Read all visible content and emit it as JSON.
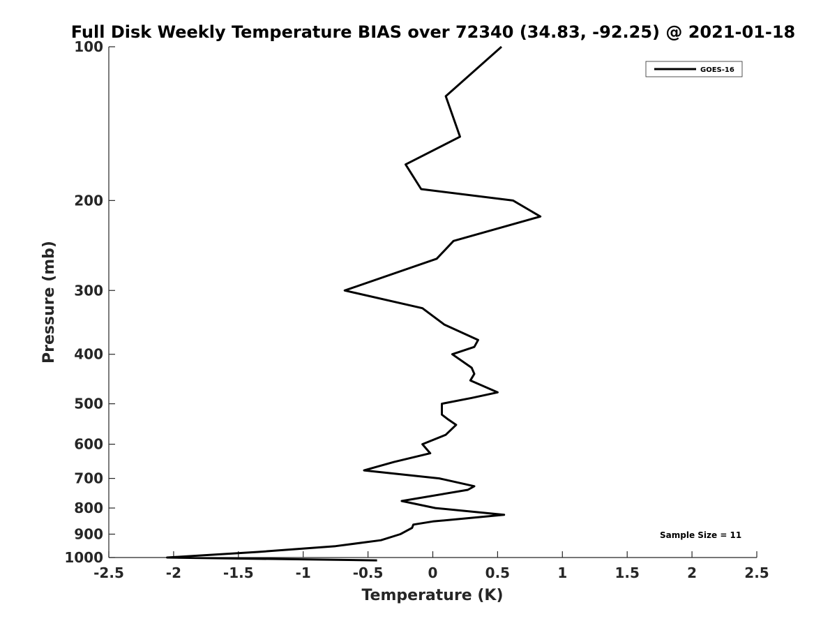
{
  "chart_data": {
    "type": "line",
    "title": "Full Disk Weekly Temperature BIAS over 72340 (34.83, -92.25) @ 2021-01-18",
    "xlabel": "Temperature (K)",
    "ylabel": "Pressure (mb)",
    "xlim": [
      -2.5,
      2.5
    ],
    "ylim": [
      100,
      1000
    ],
    "y_scale": "log",
    "y_reversed": true,
    "x_ticks": [
      -2.5,
      -2,
      -1.5,
      -1,
      -0.5,
      0,
      0.5,
      1,
      1.5,
      2,
      2.5
    ],
    "x_tick_labels": [
      "-2.5",
      "-2",
      "-1.5",
      "-1",
      "-0.5",
      "0",
      "0.5",
      "1",
      "1.5",
      "2",
      "2.5"
    ],
    "y_ticks": [
      100,
      200,
      300,
      400,
      500,
      600,
      700,
      800,
      900,
      1000
    ],
    "y_tick_labels": [
      "100",
      "200",
      "300",
      "400",
      "500",
      "600",
      "700",
      "800",
      "900",
      "1000"
    ],
    "grid": false,
    "legend_position": "top-right",
    "annotation": "Sample Size = 11",
    "series": [
      {
        "name": "GOES-16",
        "color": "#000000",
        "points": [
          {
            "x": 0.53,
            "y": 100
          },
          {
            "x": 0.1,
            "y": 125
          },
          {
            "x": 0.21,
            "y": 150
          },
          {
            "x": -0.21,
            "y": 170
          },
          {
            "x": -0.09,
            "y": 190
          },
          {
            "x": 0.62,
            "y": 200
          },
          {
            "x": 0.83,
            "y": 215
          },
          {
            "x": 0.16,
            "y": 240
          },
          {
            "x": 0.03,
            "y": 260
          },
          {
            "x": -0.68,
            "y": 300
          },
          {
            "x": -0.08,
            "y": 325
          },
          {
            "x": 0.09,
            "y": 350
          },
          {
            "x": 0.35,
            "y": 375
          },
          {
            "x": 0.32,
            "y": 387
          },
          {
            "x": 0.15,
            "y": 400
          },
          {
            "x": 0.3,
            "y": 425
          },
          {
            "x": 0.32,
            "y": 437
          },
          {
            "x": 0.29,
            "y": 450
          },
          {
            "x": 0.5,
            "y": 475
          },
          {
            "x": 0.3,
            "y": 487
          },
          {
            "x": 0.07,
            "y": 500
          },
          {
            "x": 0.07,
            "y": 525
          },
          {
            "x": 0.12,
            "y": 537
          },
          {
            "x": 0.18,
            "y": 550
          },
          {
            "x": 0.1,
            "y": 575
          },
          {
            "x": -0.08,
            "y": 600
          },
          {
            "x": -0.02,
            "y": 625
          },
          {
            "x": -0.3,
            "y": 650
          },
          {
            "x": -0.53,
            "y": 675
          },
          {
            "x": 0.05,
            "y": 700
          },
          {
            "x": 0.32,
            "y": 725
          },
          {
            "x": 0.27,
            "y": 737
          },
          {
            "x": -0.24,
            "y": 775
          },
          {
            "x": 0.02,
            "y": 800
          },
          {
            "x": 0.55,
            "y": 825
          },
          {
            "x": 0.0,
            "y": 850
          },
          {
            "x": -0.15,
            "y": 862
          },
          {
            "x": -0.16,
            "y": 875
          },
          {
            "x": -0.25,
            "y": 900
          },
          {
            "x": -0.4,
            "y": 925
          },
          {
            "x": -0.75,
            "y": 950
          },
          {
            "x": -1.35,
            "y": 975
          },
          {
            "x": -2.05,
            "y": 1000
          },
          {
            "x": -0.43,
            "y": 1013
          }
        ]
      }
    ]
  }
}
